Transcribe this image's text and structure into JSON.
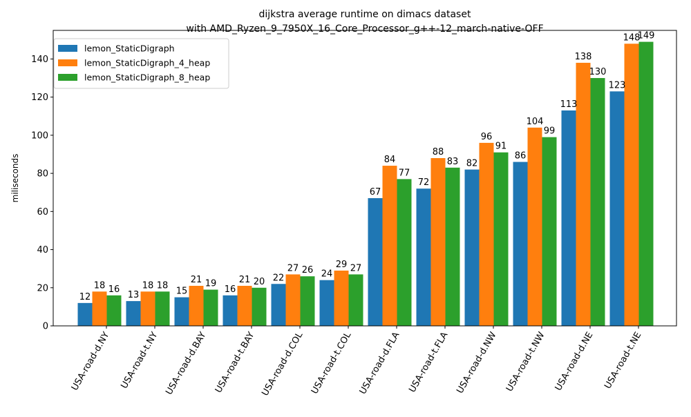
{
  "chart_data": {
    "type": "bar",
    "title_line1": "dijkstra average runtime on dimacs dataset",
    "title_line2": "with AMD_Ryzen_9_7950X_16_Core_Processor_g++-12_march-native-OFF",
    "xlabel": "",
    "ylabel": "miliseconds",
    "ylim": [
      0,
      155
    ],
    "yticks": [
      0,
      20,
      40,
      60,
      80,
      100,
      120,
      140
    ],
    "grid": false,
    "legend_position": "top-left",
    "categories": [
      "USA-road-d.NY",
      "USA-road-t.NY",
      "USA-road-d.BAY",
      "USA-road-t.BAY",
      "USA-road-d.COL",
      "USA-road-t.COL",
      "USA-road-d.FLA",
      "USA-road-t.FLA",
      "USA-road-d.NW",
      "USA-road-t.NW",
      "USA-road-d.NE",
      "USA-road-t.NE"
    ],
    "series": [
      {
        "name": "lemon_StaticDigraph",
        "color": "#1f77b4",
        "values": [
          12,
          13,
          15,
          16,
          22,
          24,
          67,
          72,
          82,
          86,
          113,
          123
        ],
        "labels": [
          "12",
          "13",
          "15",
          "16",
          "22",
          "24",
          "67",
          "72",
          "82",
          "86",
          "113",
          "123"
        ]
      },
      {
        "name": "lemon_StaticDigraph_4_heap",
        "color": "#ff7f0e",
        "values": [
          18,
          18,
          21,
          21,
          27,
          29,
          84,
          88,
          96,
          104,
          138,
          148
        ],
        "labels": [
          "18",
          "18",
          "21",
          "21",
          "27",
          "29",
          "84",
          "88",
          "96",
          "104",
          "138",
          "148"
        ]
      },
      {
        "name": "lemon_StaticDigraph_8_heap",
        "color": "#2ca02c",
        "values": [
          16,
          18,
          19,
          20,
          26,
          27,
          77,
          83,
          91,
          99,
          130,
          149
        ],
        "labels": [
          "16",
          "18",
          "19",
          "20",
          "26",
          "27",
          "77",
          "83",
          "91",
          "99",
          "130",
          "149"
        ]
      }
    ]
  }
}
